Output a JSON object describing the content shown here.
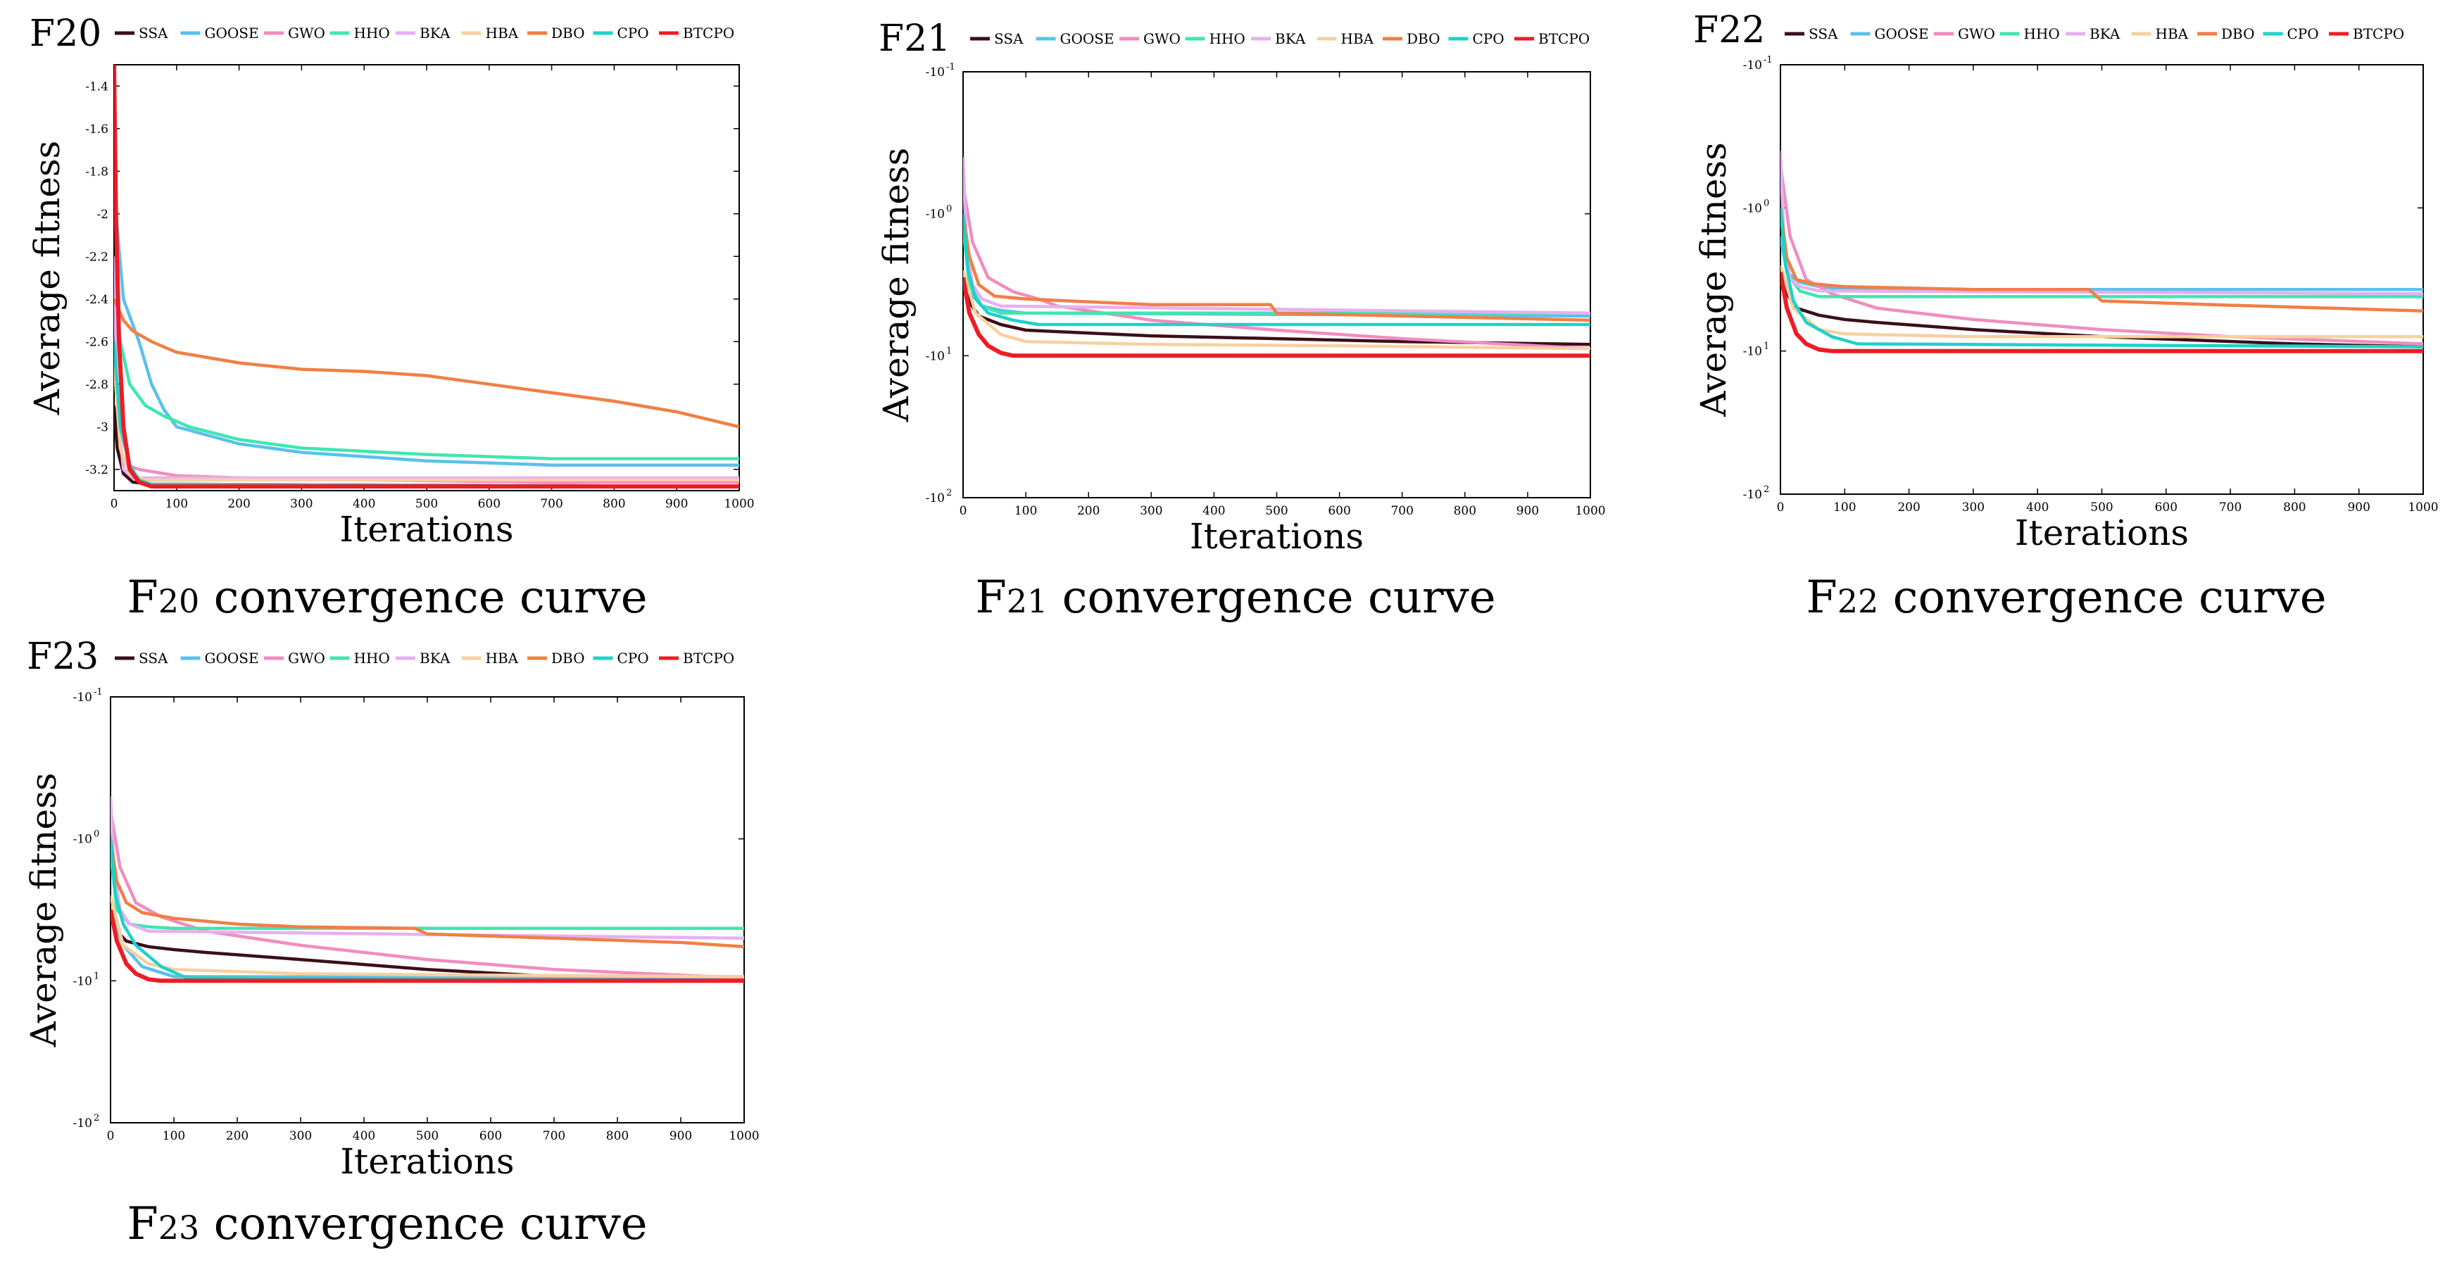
{
  "legend": [
    "SSA",
    "GOOSE",
    "GWO",
    "HHO",
    "BKA",
    "HBA",
    "DBO",
    "CPO",
    "BTCPO"
  ],
  "colors": {
    "SSA": "#3b0f18",
    "GOOSE": "#5bc0eb",
    "GWO": "#f28cc0",
    "HHO": "#3fe6b0",
    "BKA": "#e6b0f0",
    "HBA": "#f7d0a0",
    "DBO": "#f07f45",
    "CPO": "#1fd1c8",
    "BTCPO": "#ee1c25"
  },
  "chart_data": [
    {
      "id": "F20",
      "type": "line",
      "title": "F20",
      "caption_prefix": "F",
      "caption_sub": "20",
      "caption_rest": " convergence curve",
      "xlabel": "Iterations",
      "ylabel": "Average fitness",
      "xlim": [
        0,
        1000
      ],
      "ylim": [
        -3.3,
        -1.3
      ],
      "yscale": "linear",
      "xticks": [
        0,
        100,
        200,
        300,
        400,
        500,
        600,
        700,
        800,
        900,
        1000
      ],
      "yticks": [
        -3.2,
        -3,
        -2.8,
        -2.6,
        -2.4,
        -2.2,
        -2,
        -1.8,
        -1.6,
        -1.4
      ],
      "ytick_labels": [
        "-3.2",
        "-3",
        "-2.8",
        "-2.6",
        "-2.4",
        "-2.2",
        "-2",
        "-1.8",
        "-1.6",
        "-1.4"
      ],
      "series": [
        {
          "name": "SSA",
          "x": [
            0,
            5,
            15,
            30,
            60,
            1000
          ],
          "y": [
            -2.9,
            -3.1,
            -3.22,
            -3.26,
            -3.27,
            -3.28
          ]
        },
        {
          "name": "GOOSE",
          "x": [
            0,
            15,
            40,
            60,
            80,
            100,
            200,
            300,
            500,
            700,
            1000
          ],
          "y": [
            -1.9,
            -2.4,
            -2.6,
            -2.8,
            -2.92,
            -3.0,
            -3.08,
            -3.12,
            -3.16,
            -3.18,
            -3.18
          ]
        },
        {
          "name": "GWO",
          "x": [
            0,
            10,
            20,
            40,
            60,
            100,
            200,
            400,
            700,
            1000
          ],
          "y": [
            -2.6,
            -3.1,
            -3.18,
            -3.2,
            -3.21,
            -3.23,
            -3.24,
            -3.25,
            -3.26,
            -3.26
          ]
        },
        {
          "name": "HHO",
          "x": [
            0,
            10,
            25,
            50,
            80,
            120,
            200,
            300,
            500,
            700,
            1000
          ],
          "y": [
            -2.4,
            -2.6,
            -2.8,
            -2.9,
            -2.95,
            -3.0,
            -3.06,
            -3.1,
            -3.13,
            -3.15,
            -3.15
          ]
        },
        {
          "name": "BKA",
          "x": [
            0,
            5,
            15,
            30,
            1000
          ],
          "y": [
            -2.2,
            -2.9,
            -3.2,
            -3.24,
            -3.24
          ]
        },
        {
          "name": "HBA",
          "x": [
            0,
            10,
            25,
            50,
            1000
          ],
          "y": [
            -2.7,
            -3.1,
            -3.22,
            -3.25,
            -3.25
          ]
        },
        {
          "name": "DBO",
          "x": [
            0,
            15,
            30,
            60,
            100,
            200,
            300,
            400,
            500,
            600,
            700,
            800,
            900,
            1000
          ],
          "y": [
            -2.4,
            -2.5,
            -2.55,
            -2.6,
            -2.65,
            -2.7,
            -2.73,
            -2.74,
            -2.76,
            -2.8,
            -2.84,
            -2.88,
            -2.93,
            -3.0
          ]
        },
        {
          "name": "CPO",
          "x": [
            0,
            10,
            25,
            40,
            60,
            1000
          ],
          "y": [
            -2.6,
            -3.0,
            -3.18,
            -3.25,
            -3.27,
            -3.28
          ]
        },
        {
          "name": "BTCPO",
          "x": [
            0,
            3,
            8,
            15,
            25,
            40,
            60,
            1000
          ],
          "y": [
            -1.3,
            -2.0,
            -2.6,
            -3.0,
            -3.2,
            -3.26,
            -3.28,
            -3.28
          ]
        }
      ]
    },
    {
      "id": "F21",
      "type": "line",
      "title": "F21",
      "caption_prefix": "F",
      "caption_sub": "21",
      "caption_rest": " convergence curve",
      "xlabel": "Iterations",
      "ylabel": "Average fitness",
      "xlim": [
        0,
        1000
      ],
      "ylim_log10_magnitude": [
        -1,
        2
      ],
      "yscale": "negative-log",
      "xticks": [
        0,
        100,
        200,
        300,
        400,
        500,
        600,
        700,
        800,
        900,
        1000
      ],
      "yticks_log10": [
        -1,
        0,
        1,
        2
      ],
      "ytick_labels": [
        "-10",
        "-10",
        "-10",
        "-10"
      ],
      "ytick_exponents": [
        "-1",
        "0",
        "1",
        "2"
      ],
      "series": [
        {
          "name": "SSA",
          "x": [
            0,
            10,
            25,
            60,
            100,
            150,
            300,
            500,
            700,
            1000
          ],
          "y": [
            0.48,
            0.62,
            0.72,
            0.78,
            0.82,
            0.83,
            0.86,
            0.88,
            0.9,
            0.92
          ]
        },
        {
          "name": "GOOSE",
          "x": [
            0,
            10,
            30,
            60,
            100,
            1000
          ],
          "y": [
            0.4,
            0.55,
            0.65,
            0.68,
            0.7,
            0.72
          ]
        },
        {
          "name": "GWO",
          "x": [
            0,
            15,
            40,
            80,
            120,
            150,
            300,
            500,
            700,
            1000
          ],
          "y": [
            -0.2,
            0.2,
            0.45,
            0.55,
            0.6,
            0.65,
            0.75,
            0.82,
            0.88,
            0.95
          ]
        },
        {
          "name": "HHO",
          "x": [
            0,
            10,
            30,
            60,
            100,
            1000
          ],
          "y": [
            0.1,
            0.5,
            0.65,
            0.7,
            0.7,
            0.7
          ]
        },
        {
          "name": "BKA",
          "x": [
            0,
            5,
            15,
            30,
            60,
            1000
          ],
          "y": [
            -0.4,
            0.2,
            0.5,
            0.6,
            0.65,
            0.7
          ]
        },
        {
          "name": "HBA",
          "x": [
            0,
            20,
            60,
            100,
            300,
            600,
            1000
          ],
          "y": [
            0.4,
            0.7,
            0.85,
            0.9,
            0.92,
            0.93,
            0.95
          ]
        },
        {
          "name": "DBO",
          "x": [
            0,
            10,
            25,
            50,
            100,
            200,
            300,
            490,
            500,
            700,
            1000
          ],
          "y": [
            0.0,
            0.3,
            0.5,
            0.58,
            0.6,
            0.62,
            0.64,
            0.64,
            0.7,
            0.72,
            0.75
          ]
        },
        {
          "name": "CPO",
          "x": [
            0,
            8,
            20,
            40,
            80,
            120,
            1000
          ],
          "y": [
            0.0,
            0.4,
            0.6,
            0.7,
            0.75,
            0.78,
            0.78
          ]
        },
        {
          "name": "BTCPO",
          "x": [
            0,
            10,
            25,
            40,
            60,
            80,
            1000
          ],
          "y": [
            0.45,
            0.7,
            0.85,
            0.93,
            0.98,
            1.0,
            1.0
          ]
        }
      ]
    },
    {
      "id": "F22",
      "type": "line",
      "title": "F22",
      "caption_prefix": "F",
      "caption_sub": "22",
      "caption_rest": " convergence curve",
      "xlabel": "Iterations",
      "ylabel": "Average fitness",
      "xlim": [
        0,
        1000
      ],
      "ylim_log10_magnitude": [
        -1,
        2
      ],
      "yscale": "negative-log",
      "xticks": [
        0,
        100,
        200,
        300,
        400,
        500,
        600,
        700,
        800,
        900,
        1000
      ],
      "yticks_log10": [
        -1,
        0,
        1,
        2
      ],
      "ytick_labels": [
        "-10",
        "-10",
        "-10",
        "-10"
      ],
      "ytick_exponents": [
        "-1",
        "0",
        "1",
        "2"
      ],
      "series": [
        {
          "name": "SSA",
          "x": [
            0,
            10,
            25,
            60,
            100,
            150,
            300,
            500,
            800,
            1000
          ],
          "y": [
            0.45,
            0.6,
            0.7,
            0.75,
            0.78,
            0.8,
            0.85,
            0.9,
            0.95,
            0.97
          ]
        },
        {
          "name": "GOOSE",
          "x": [
            0,
            10,
            30,
            60,
            100,
            1000
          ],
          "y": [
            0.2,
            0.45,
            0.52,
            0.55,
            0.57,
            0.57
          ]
        },
        {
          "name": "GWO",
          "x": [
            0,
            15,
            40,
            80,
            150,
            300,
            500,
            700,
            1000
          ],
          "y": [
            -0.3,
            0.2,
            0.5,
            0.6,
            0.7,
            0.78,
            0.85,
            0.9,
            0.95
          ]
        },
        {
          "name": "HHO",
          "x": [
            0,
            10,
            30,
            60,
            100,
            1000
          ],
          "y": [
            0.0,
            0.45,
            0.58,
            0.62,
            0.62,
            0.62
          ]
        },
        {
          "name": "BKA",
          "x": [
            0,
            5,
            15,
            30,
            60,
            1000
          ],
          "y": [
            -0.4,
            0.2,
            0.5,
            0.55,
            0.58,
            0.6
          ]
        },
        {
          "name": "HBA",
          "x": [
            0,
            20,
            60,
            100,
            300,
            600,
            1000
          ],
          "y": [
            0.4,
            0.7,
            0.85,
            0.88,
            0.9,
            0.9,
            0.9
          ]
        },
        {
          "name": "DBO",
          "x": [
            0,
            10,
            25,
            50,
            100,
            200,
            300,
            480,
            500,
            700,
            1000
          ],
          "y": [
            0.0,
            0.35,
            0.5,
            0.53,
            0.55,
            0.56,
            0.57,
            0.57,
            0.65,
            0.68,
            0.72
          ]
        },
        {
          "name": "CPO",
          "x": [
            0,
            8,
            20,
            40,
            80,
            120,
            1000
          ],
          "y": [
            0.0,
            0.4,
            0.65,
            0.8,
            0.9,
            0.95,
            0.97
          ]
        },
        {
          "name": "BTCPO",
          "x": [
            0,
            10,
            25,
            40,
            60,
            80,
            1000
          ],
          "y": [
            0.45,
            0.7,
            0.88,
            0.95,
            0.99,
            1.0,
            1.0
          ]
        }
      ]
    },
    {
      "id": "F23",
      "type": "line",
      "title": "F23",
      "caption_prefix": "F",
      "caption_sub": "23",
      "caption_rest": " convergence curve",
      "xlabel": "Iterations",
      "ylabel": "Average fitness",
      "xlim": [
        0,
        1000
      ],
      "ylim_log10_magnitude": [
        -1,
        2
      ],
      "yscale": "negative-log",
      "xticks": [
        0,
        100,
        200,
        300,
        400,
        500,
        600,
        700,
        800,
        900,
        1000
      ],
      "yticks_log10": [
        -1,
        0,
        1,
        2
      ],
      "ytick_labels": [
        "-10",
        "-10",
        "-10",
        "-10"
      ],
      "ytick_exponents": [
        "-1",
        "0",
        "1",
        "2"
      ],
      "series": [
        {
          "name": "SSA",
          "x": [
            0,
            10,
            25,
            60,
            100,
            150,
            300,
            500,
            700,
            1000
          ],
          "y": [
            0.5,
            0.65,
            0.72,
            0.76,
            0.78,
            0.8,
            0.85,
            0.92,
            0.97,
            1.0
          ]
        },
        {
          "name": "GOOSE",
          "x": [
            0,
            20,
            50,
            100,
            1000
          ],
          "y": [
            0.5,
            0.75,
            0.9,
            0.97,
            0.98
          ]
        },
        {
          "name": "GWO",
          "x": [
            0,
            15,
            40,
            80,
            150,
            300,
            500,
            700,
            1000
          ],
          "y": [
            -0.2,
            0.2,
            0.45,
            0.55,
            0.65,
            0.75,
            0.85,
            0.92,
            0.98
          ]
        },
        {
          "name": "HHO",
          "x": [
            0,
            10,
            30,
            60,
            100,
            1000
          ],
          "y": [
            0.1,
            0.5,
            0.6,
            0.62,
            0.63,
            0.63
          ]
        },
        {
          "name": "BKA",
          "x": [
            0,
            5,
            15,
            30,
            60,
            1000
          ],
          "y": [
            -0.3,
            0.2,
            0.5,
            0.6,
            0.65,
            0.7
          ]
        },
        {
          "name": "HBA",
          "x": [
            0,
            20,
            60,
            100,
            300,
            600,
            1000
          ],
          "y": [
            0.4,
            0.75,
            0.88,
            0.92,
            0.95,
            0.96,
            0.97
          ]
        },
        {
          "name": "DBO",
          "x": [
            0,
            10,
            25,
            50,
            100,
            200,
            300,
            480,
            500,
            700,
            900,
            1000
          ],
          "y": [
            0.0,
            0.3,
            0.45,
            0.52,
            0.56,
            0.6,
            0.62,
            0.63,
            0.67,
            0.7,
            0.73,
            0.76
          ]
        },
        {
          "name": "CPO",
          "x": [
            0,
            8,
            20,
            40,
            80,
            120,
            1000
          ],
          "y": [
            0.0,
            0.4,
            0.6,
            0.75,
            0.9,
            0.98,
            1.0
          ]
        },
        {
          "name": "BTCPO",
          "x": [
            0,
            10,
            25,
            40,
            60,
            80,
            1000
          ],
          "y": [
            0.5,
            0.72,
            0.88,
            0.95,
            0.99,
            1.0,
            1.0
          ]
        }
      ]
    }
  ]
}
